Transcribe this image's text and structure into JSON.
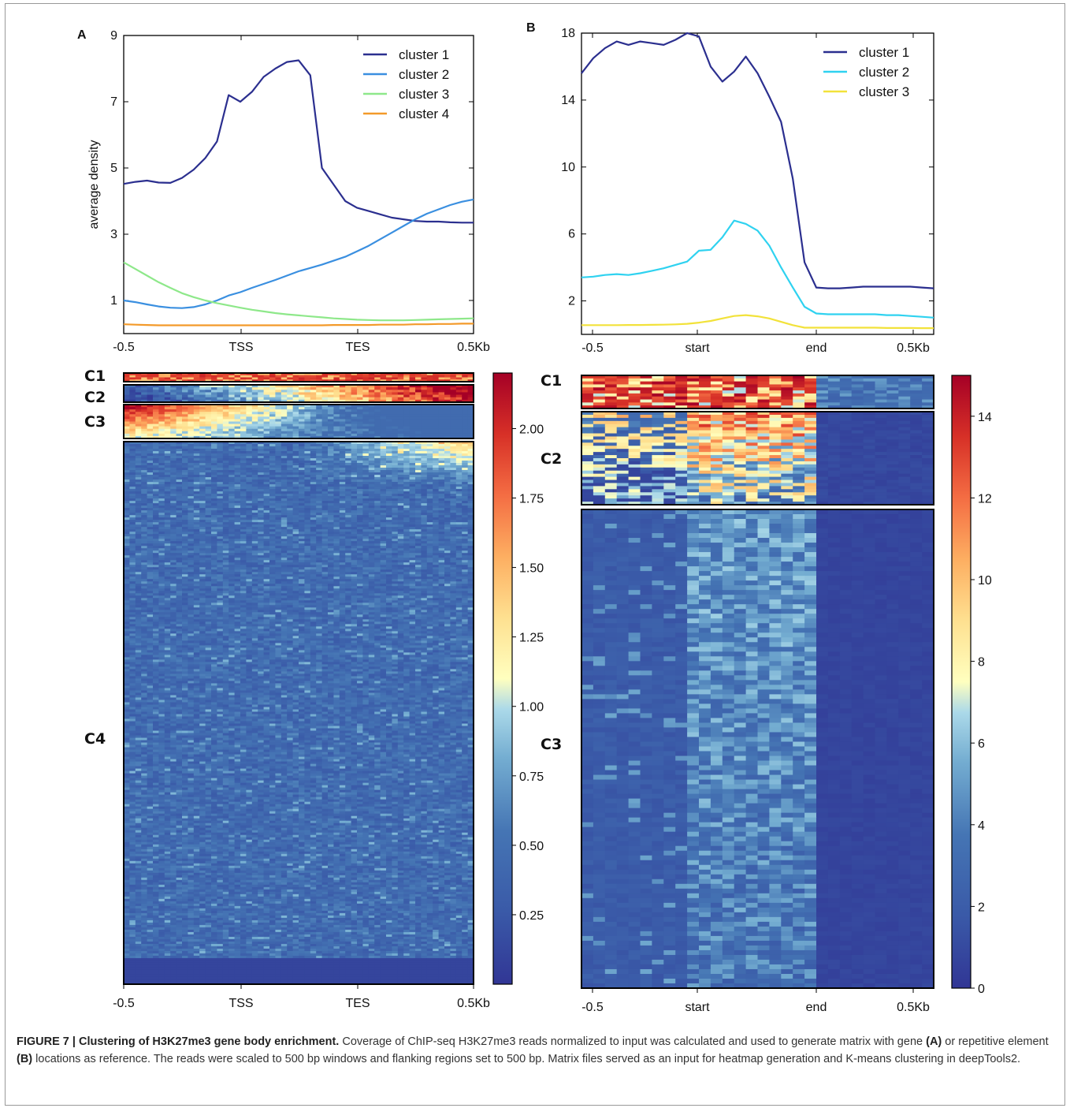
{
  "chart_data": [
    {
      "panel": "A",
      "type": "line",
      "xticks": [
        "-0.5",
        "TSS",
        "TES",
        "0.5Kb"
      ],
      "x": [
        0,
        5,
        10,
        15,
        20,
        25,
        30,
        35,
        40,
        45,
        50,
        55,
        60,
        65,
        70,
        75,
        80,
        85,
        90,
        95,
        100,
        105,
        110,
        115,
        120,
        125,
        130,
        135,
        140,
        145,
        150
      ],
      "ylabel": "average density",
      "yticks": [
        "1",
        "3",
        "5",
        "7",
        "9"
      ],
      "ylim": [
        0,
        9
      ],
      "legend": "top-right",
      "series": [
        {
          "name": "cluster 1",
          "color": "#2b2f8f",
          "values": [
            4.52,
            4.58,
            4.62,
            4.56,
            4.55,
            4.7,
            4.95,
            5.3,
            5.8,
            7.2,
            7.0,
            7.3,
            7.75,
            8.0,
            8.2,
            8.25,
            7.8,
            5.0,
            4.5,
            4.0,
            3.8,
            3.7,
            3.6,
            3.5,
            3.45,
            3.4,
            3.38,
            3.38,
            3.36,
            3.35,
            3.35
          ]
        },
        {
          "name": "cluster 2",
          "color": "#3a8fe0",
          "values": [
            1.0,
            0.95,
            0.88,
            0.82,
            0.78,
            0.77,
            0.8,
            0.88,
            1.0,
            1.15,
            1.25,
            1.38,
            1.5,
            1.62,
            1.75,
            1.88,
            1.98,
            2.08,
            2.2,
            2.32,
            2.48,
            2.65,
            2.85,
            3.05,
            3.25,
            3.45,
            3.62,
            3.75,
            3.88,
            3.98,
            4.05
          ]
        },
        {
          "name": "cluster 3",
          "color": "#8ee88a",
          "values": [
            2.15,
            1.95,
            1.75,
            1.55,
            1.38,
            1.22,
            1.1,
            1.0,
            0.92,
            0.85,
            0.78,
            0.72,
            0.67,
            0.62,
            0.58,
            0.55,
            0.52,
            0.49,
            0.46,
            0.44,
            0.42,
            0.41,
            0.4,
            0.4,
            0.4,
            0.41,
            0.42,
            0.43,
            0.44,
            0.45,
            0.46
          ]
        },
        {
          "name": "cluster 4",
          "color": "#f39a2a",
          "values": [
            0.28,
            0.27,
            0.26,
            0.25,
            0.25,
            0.25,
            0.25,
            0.25,
            0.25,
            0.25,
            0.25,
            0.25,
            0.25,
            0.25,
            0.25,
            0.25,
            0.25,
            0.25,
            0.26,
            0.26,
            0.26,
            0.26,
            0.27,
            0.27,
            0.27,
            0.28,
            0.28,
            0.29,
            0.29,
            0.3,
            0.3
          ]
        }
      ],
      "heatmap": {
        "xticks": [
          "-0.5",
          "TSS",
          "TES",
          "0.5Kb"
        ],
        "clusters": [
          "C1",
          "C2",
          "C3",
          "C4"
        ],
        "colorbar_ticks": [
          "0.25",
          "0.50",
          "0.75",
          "1.00",
          "1.25",
          "1.50",
          "1.75",
          "2.00"
        ],
        "colorbar_range": [
          0,
          2.2
        ]
      }
    },
    {
      "panel": "B",
      "type": "line",
      "xticks": [
        "-0.5",
        "start",
        "end",
        "0.5Kb"
      ],
      "x": [
        0,
        1,
        2,
        3,
        4,
        5,
        6,
        7,
        8,
        9,
        10,
        11,
        12,
        13,
        14,
        15,
        16,
        17,
        18,
        19,
        20,
        21,
        22,
        23,
        24,
        25,
        26,
        27,
        28,
        29,
        30
      ],
      "ylabel": "",
      "yticks": [
        "2",
        "6",
        "10",
        "14",
        "18"
      ],
      "ylim": [
        0,
        18
      ],
      "legend": "top-right",
      "series": [
        {
          "name": "cluster 1",
          "color": "#2b2f8f",
          "values": [
            15.6,
            16.5,
            17.1,
            17.5,
            17.3,
            17.5,
            17.4,
            17.3,
            17.6,
            18.0,
            17.8,
            16.0,
            15.1,
            15.7,
            16.6,
            15.6,
            14.2,
            12.7,
            9.3,
            4.3,
            2.8,
            2.75,
            2.75,
            2.8,
            2.85,
            2.85,
            2.85,
            2.85,
            2.85,
            2.8,
            2.75
          ]
        },
        {
          "name": "cluster 2",
          "color": "#2fd2f0",
          "values": [
            3.4,
            3.45,
            3.55,
            3.6,
            3.55,
            3.65,
            3.8,
            3.95,
            4.15,
            4.35,
            5.0,
            5.05,
            5.8,
            6.8,
            6.6,
            6.2,
            5.3,
            4.0,
            2.8,
            1.65,
            1.25,
            1.2,
            1.2,
            1.2,
            1.2,
            1.2,
            1.15,
            1.15,
            1.1,
            1.05,
            1.0
          ]
        },
        {
          "name": "cluster 3",
          "color": "#f2e23a",
          "values": [
            0.55,
            0.55,
            0.55,
            0.55,
            0.56,
            0.56,
            0.57,
            0.58,
            0.6,
            0.63,
            0.7,
            0.8,
            0.95,
            1.1,
            1.15,
            1.08,
            0.95,
            0.75,
            0.55,
            0.4,
            0.4,
            0.4,
            0.4,
            0.4,
            0.4,
            0.4,
            0.38,
            0.38,
            0.38,
            0.37,
            0.37
          ]
        }
      ],
      "heatmap": {
        "xticks": [
          "-0.5",
          "start",
          "end",
          "0.5Kb"
        ],
        "clusters": [
          "C1",
          "C2",
          "C3"
        ],
        "colorbar_ticks": [
          "0",
          "2",
          "4",
          "6",
          "8",
          "10",
          "12",
          "14"
        ],
        "colorbar_range": [
          0,
          15
        ]
      }
    }
  ],
  "caption": {
    "label": "FIGURE 7 | Clustering of H3K27me3 gene body enrichment.",
    "text1": " Coverage of ChIP-seq H3K27me3 reads normalized to input was calculated and used to generate matrix with gene ",
    "refA": "(A)",
    "text2": " or repetitive element ",
    "refB": "(B)",
    "text3": " locations as reference. The reads were scaled to 500 bp windows and flanking regions set to 500 bp. Matrix files served as an input for heatmap generation and K-means clustering in deepTools2."
  }
}
